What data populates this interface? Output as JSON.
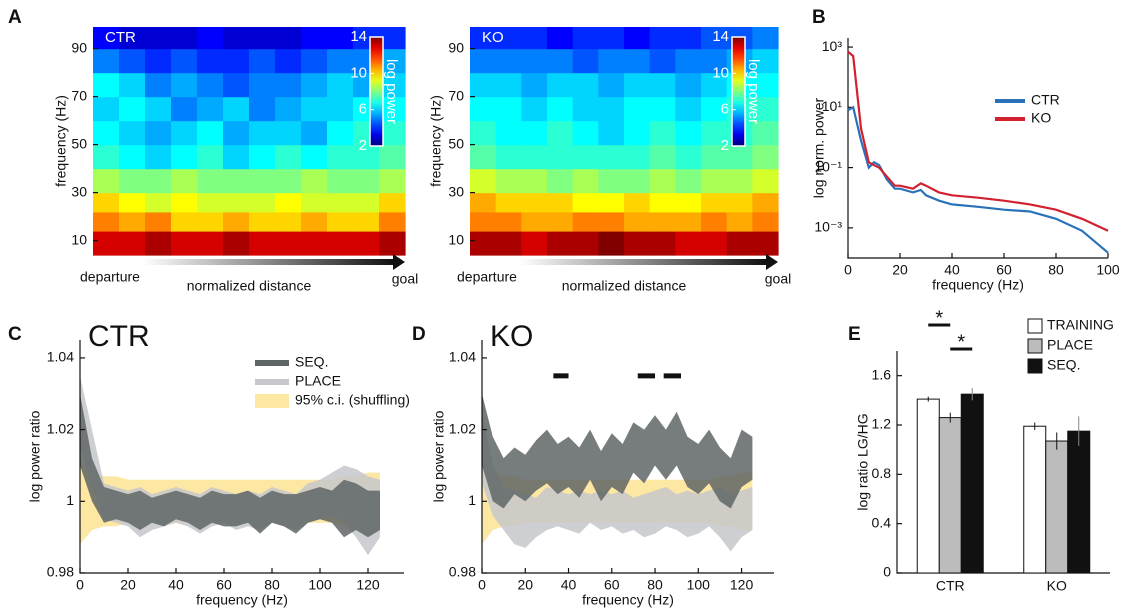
{
  "chart_data": [
    {
      "type": "heatmap",
      "panel": "A",
      "label": "CTR",
      "ylabel": "frequency (Hz)",
      "xlabel": "normalized distance",
      "x_start": "departure",
      "x_end": "goal",
      "ybins": [
        4,
        14,
        22,
        30,
        40,
        50,
        60,
        70,
        80,
        90,
        99
      ],
      "values": [
        [
          13,
          13,
          13.5,
          13,
          13,
          13.5,
          13,
          13,
          13,
          13,
          13,
          13.5
        ],
        [
          11,
          10.5,
          11,
          10,
          10,
          10.5,
          10,
          10,
          10.5,
          10,
          10,
          11
        ],
        [
          10,
          9.5,
          9,
          9.5,
          9,
          9,
          9,
          9.5,
          9,
          9,
          9,
          10
        ],
        [
          8.5,
          8,
          8,
          8.5,
          8,
          8,
          8,
          8,
          8.5,
          8,
          8,
          8.5
        ],
        [
          7,
          6.5,
          6,
          6.5,
          7,
          6,
          6.5,
          7,
          6.5,
          7,
          7,
          7.5
        ],
        [
          6.5,
          6,
          5.5,
          6,
          6.5,
          5.5,
          6,
          6,
          5.5,
          6.5,
          7,
          7
        ],
        [
          6,
          6.5,
          6,
          5,
          5.5,
          6,
          5,
          5.5,
          6,
          6,
          6.5,
          6.5
        ],
        [
          6.5,
          6,
          5,
          5.5,
          5,
          4.5,
          5,
          5,
          5.5,
          6,
          5.5,
          6
        ],
        [
          5,
          4.5,
          4,
          4.5,
          4,
          4,
          4.5,
          4,
          4.5,
          5,
          5,
          5.5
        ],
        [
          3.5,
          3,
          3,
          3,
          3.5,
          3,
          3,
          3,
          3.5,
          3.5,
          4,
          4
        ]
      ],
      "ylim": [
        4,
        99
      ],
      "yticks": [
        10,
        30,
        50,
        70,
        90
      ],
      "colorbar": {
        "label": "log power",
        "lim": [
          2,
          14
        ],
        "ticks": [
          2,
          6,
          10,
          14
        ]
      }
    },
    {
      "type": "heatmap",
      "label": "KO",
      "ylabel": "frequency (Hz)",
      "xlabel": "normalized distance",
      "x_start": "departure",
      "x_end": "goal",
      "ybins": [
        4,
        14,
        22,
        30,
        40,
        50,
        60,
        70,
        80,
        90,
        99
      ],
      "values": [
        [
          13.5,
          13.5,
          13,
          13.5,
          13.5,
          14,
          13.5,
          13.5,
          13,
          13,
          13.5,
          13.5
        ],
        [
          11,
          11,
          10.5,
          10.5,
          11,
          11,
          10.5,
          10.5,
          10.5,
          11,
          10.5,
          11
        ],
        [
          10.5,
          10,
          10,
          10,
          9.5,
          9.5,
          10,
          9.5,
          9.5,
          10,
          10,
          10.5
        ],
        [
          9,
          8.5,
          8.5,
          8,
          8.5,
          8,
          8,
          8.5,
          8,
          8.5,
          8.5,
          9
        ],
        [
          7.5,
          7,
          7,
          7,
          7,
          7,
          7,
          7.5,
          7,
          7.5,
          7.5,
          8
        ],
        [
          7,
          6.5,
          6.5,
          7,
          6.5,
          6,
          6.5,
          7,
          6.5,
          7,
          7,
          7.5
        ],
        [
          6.5,
          6.5,
          6,
          6.5,
          6,
          6,
          6.5,
          6.5,
          6,
          6.5,
          7,
          7
        ],
        [
          6,
          6,
          5.5,
          6,
          6,
          5.5,
          6,
          6,
          5.5,
          6,
          6.5,
          6.5
        ],
        [
          5,
          5,
          5,
          5,
          4.5,
          5,
          5,
          4.5,
          5,
          5,
          5.5,
          6
        ],
        [
          4,
          4,
          4,
          3.5,
          4,
          4,
          3.5,
          4,
          4,
          4.5,
          4.5,
          5
        ]
      ],
      "ylim": [
        4,
        99
      ],
      "yticks": [
        10,
        30,
        50,
        70,
        90
      ],
      "colorbar": {
        "label": "log power",
        "lim": [
          2,
          14
        ],
        "ticks": [
          2,
          6,
          10,
          14
        ]
      }
    },
    {
      "type": "line",
      "panel": "B",
      "xlabel": "frequency (Hz)",
      "ylabel": "log norm. power",
      "log_y": true,
      "legend": "upper right",
      "x": [
        0,
        2,
        5,
        8,
        10,
        12,
        15,
        18,
        20,
        25,
        28,
        30,
        35,
        40,
        50,
        60,
        70,
        80,
        90,
        100
      ],
      "series": [
        {
          "name": "CTR",
          "color": "#2a72b8",
          "values": [
            8,
            10,
            0.8,
            0.1,
            0.15,
            0.12,
            0.04,
            0.02,
            0.02,
            0.015,
            0.018,
            0.012,
            0.008,
            0.006,
            0.005,
            0.004,
            0.0035,
            0.002,
            0.0008,
            0.00015
          ]
        },
        {
          "name": "KO",
          "color": "#d3202f",
          "values": [
            700,
            500,
            2,
            0.15,
            0.12,
            0.1,
            0.05,
            0.025,
            0.025,
            0.02,
            0.03,
            0.025,
            0.015,
            0.012,
            0.01,
            0.008,
            0.006,
            0.004,
            0.002,
            0.0008
          ]
        }
      ],
      "xlim": [
        0,
        100
      ],
      "xticks": [
        0,
        20,
        40,
        60,
        80,
        100
      ],
      "ylim": [
        0.0001,
        2000
      ],
      "yticks": [
        {
          "value": 1000,
          "label": "10³"
        },
        {
          "value": 10,
          "label": "10¹"
        },
        {
          "value": 0.1,
          "label": "10⁻¹"
        },
        {
          "value": 0.001,
          "label": "10⁻³"
        }
      ]
    },
    {
      "type": "band",
      "panel": "C",
      "label": "CTR",
      "xlabel": "frequency (Hz)",
      "ylabel": "log power ratio",
      "legend": "upper right",
      "x": [
        0,
        5,
        10,
        15,
        20,
        25,
        30,
        35,
        40,
        45,
        50,
        55,
        60,
        65,
        70,
        75,
        80,
        85,
        90,
        95,
        100,
        105,
        110,
        115,
        120,
        125
      ],
      "series": [
        {
          "name": "95% c.i. (shuffling)",
          "color": "#fce7a3",
          "upper": [
            1.012,
            1.008,
            1.007,
            1.007,
            1.006,
            1.006,
            1.006,
            1.006,
            1.006,
            1.006,
            1.006,
            1.006,
            1.006,
            1.006,
            1.006,
            1.006,
            1.006,
            1.006,
            1.006,
            1.006,
            1.006,
            1.006,
            1.007,
            1.007,
            1.008,
            1.008
          ],
          "lower": [
            0.988,
            0.992,
            0.993,
            0.993,
            0.994,
            0.994,
            0.994,
            0.994,
            0.994,
            0.994,
            0.994,
            0.994,
            0.994,
            0.994,
            0.994,
            0.994,
            0.994,
            0.994,
            0.994,
            0.994,
            0.994,
            0.994,
            0.993,
            0.993,
            0.992,
            0.992
          ]
        },
        {
          "name": "PLACE",
          "color": "#c6c7cb",
          "upper": [
            1.035,
            1.02,
            1.005,
            1.004,
            1.003,
            1.004,
            1.002,
            1.003,
            1.004,
            1.003,
            1.002,
            1.004,
            1.003,
            1.002,
            1.003,
            1.002,
            1.004,
            1.003,
            1.002,
            1.005,
            1.006,
            1.008,
            1.01,
            1.009,
            1.007,
            1.006
          ],
          "lower": [
            1.015,
            1.004,
            0.995,
            0.994,
            0.993,
            0.99,
            0.992,
            0.993,
            0.994,
            0.993,
            0.991,
            0.993,
            0.994,
            0.992,
            0.993,
            0.992,
            0.994,
            0.993,
            0.992,
            0.994,
            0.995,
            0.996,
            0.994,
            0.99,
            0.985,
            0.99
          ]
        },
        {
          "name": "SEQ.",
          "color": "#5f6566",
          "upper": [
            1.03,
            1.012,
            1.004,
            1.003,
            1.002,
            1.003,
            1.001,
            1.002,
            1.003,
            1.002,
            1.001,
            1.003,
            1.002,
            1.002,
            1.003,
            1.001,
            1.003,
            1.002,
            1.002,
            1.003,
            1.004,
            1.003,
            1.006,
            1.005,
            1.003,
            1.003
          ],
          "lower": [
            1.01,
            1.0,
            0.994,
            0.995,
            0.994,
            0.992,
            0.994,
            0.993,
            0.995,
            0.994,
            0.992,
            0.994,
            0.993,
            0.993,
            0.994,
            0.991,
            0.994,
            0.993,
            0.991,
            0.994,
            0.995,
            0.994,
            0.99,
            0.992,
            0.99,
            0.992
          ]
        }
      ],
      "xlim": [
        0,
        135
      ],
      "xticks": [
        0,
        20,
        40,
        60,
        80,
        100,
        120
      ],
      "ylim": [
        0.98,
        1.045
      ],
      "yticks": [
        0.98,
        1,
        1.02,
        1.04
      ]
    },
    {
      "type": "band",
      "panel": "D",
      "label": "KO",
      "xlabel": "frequency (Hz)",
      "ylabel": "log power ratio",
      "x": [
        0,
        5,
        10,
        15,
        20,
        25,
        30,
        35,
        40,
        45,
        50,
        55,
        60,
        65,
        70,
        75,
        80,
        85,
        90,
        95,
        100,
        105,
        110,
        115,
        120,
        125
      ],
      "series": [
        {
          "color": "#fce7a3",
          "upper": [
            1.012,
            1.008,
            1.007,
            1.007,
            1.006,
            1.006,
            1.006,
            1.006,
            1.006,
            1.006,
            1.006,
            1.006,
            1.006,
            1.006,
            1.006,
            1.006,
            1.006,
            1.006,
            1.006,
            1.006,
            1.006,
            1.006,
            1.007,
            1.007,
            1.008,
            1.008
          ],
          "lower": [
            0.988,
            0.992,
            0.993,
            0.993,
            0.994,
            0.994,
            0.994,
            0.994,
            0.994,
            0.994,
            0.994,
            0.994,
            0.994,
            0.994,
            0.994,
            0.994,
            0.994,
            0.994,
            0.994,
            0.994,
            0.994,
            0.994,
            0.993,
            0.993,
            0.992,
            0.992
          ]
        },
        {
          "color": "#c6c7cb",
          "upper": [
            1.025,
            1.01,
            1.004,
            1.003,
            1.002,
            1.001,
            1.004,
            1.003,
            1.002,
            1.003,
            1.002,
            1.003,
            1.002,
            1.003,
            1.001,
            1.002,
            1.003,
            1.004,
            1.002,
            1.003,
            1.002,
            1.003,
            1.004,
            1.002,
            1.003,
            1.004
          ],
          "lower": [
            1.005,
            0.996,
            0.992,
            0.988,
            0.987,
            0.99,
            0.992,
            0.993,
            0.992,
            0.991,
            0.994,
            0.992,
            0.993,
            0.991,
            0.992,
            0.99,
            0.991,
            0.993,
            0.992,
            0.99,
            0.991,
            0.993,
            0.99,
            0.986,
            0.99,
            0.992
          ]
        },
        {
          "color": "#5f6566",
          "upper": [
            1.03,
            1.018,
            1.012,
            1.015,
            1.013,
            1.017,
            1.02,
            1.016,
            1.018,
            1.015,
            1.02,
            1.014,
            1.019,
            1.016,
            1.022,
            1.02,
            1.024,
            1.02,
            1.025,
            1.018,
            1.016,
            1.02,
            1.015,
            1.012,
            1.02,
            1.018
          ],
          "lower": [
            1.01,
            1.0,
            0.998,
            1.002,
            1.0,
            1.003,
            1.005,
            1.002,
            1.004,
            1.001,
            1.006,
            1.0,
            1.004,
            1.002,
            1.008,
            1.005,
            1.01,
            1.006,
            1.01,
            1.004,
            1.002,
            1.005,
            1.0,
            0.998,
            1.004,
            1.006
          ]
        }
      ],
      "significance": [
        [
          33,
          40
        ],
        [
          72,
          80
        ],
        [
          84,
          92
        ]
      ],
      "significance_level": 1.035,
      "xlim": [
        0,
        135
      ],
      "xticks": [
        0,
        20,
        40,
        60,
        80,
        100,
        120
      ],
      "ylim": [
        0.98,
        1.045
      ],
      "yticks": [
        0.98,
        1,
        1.02,
        1.04
      ]
    },
    {
      "type": "bar",
      "panel": "E",
      "ylabel": "log ratio LG/HG",
      "legend": "upper right",
      "categories": [
        "CTR",
        "KO"
      ],
      "series": [
        {
          "name": "TRAINING",
          "color": "#ffffff",
          "values": [
            1.41,
            1.19
          ],
          "errors": [
            0.02,
            0.03
          ]
        },
        {
          "name": "PLACE",
          "color": "#bcbcbc",
          "values": [
            1.26,
            1.07
          ],
          "errors": [
            0.04,
            0.07
          ]
        },
        {
          "name": "SEQ.",
          "color": "#111111",
          "values": [
            1.45,
            1.15
          ],
          "errors": [
            0.05,
            0.12
          ]
        }
      ],
      "significance": [
        {
          "category": "CTR",
          "between": [
            "TRAINING",
            "PLACE"
          ],
          "label": "*"
        },
        {
          "category": "CTR",
          "between": [
            "PLACE",
            "SEQ."
          ],
          "label": "*"
        }
      ],
      "ylim": [
        0,
        1.8
      ],
      "yticks": [
        0,
        0.4,
        0.8,
        1.2,
        1.6
      ]
    }
  ]
}
